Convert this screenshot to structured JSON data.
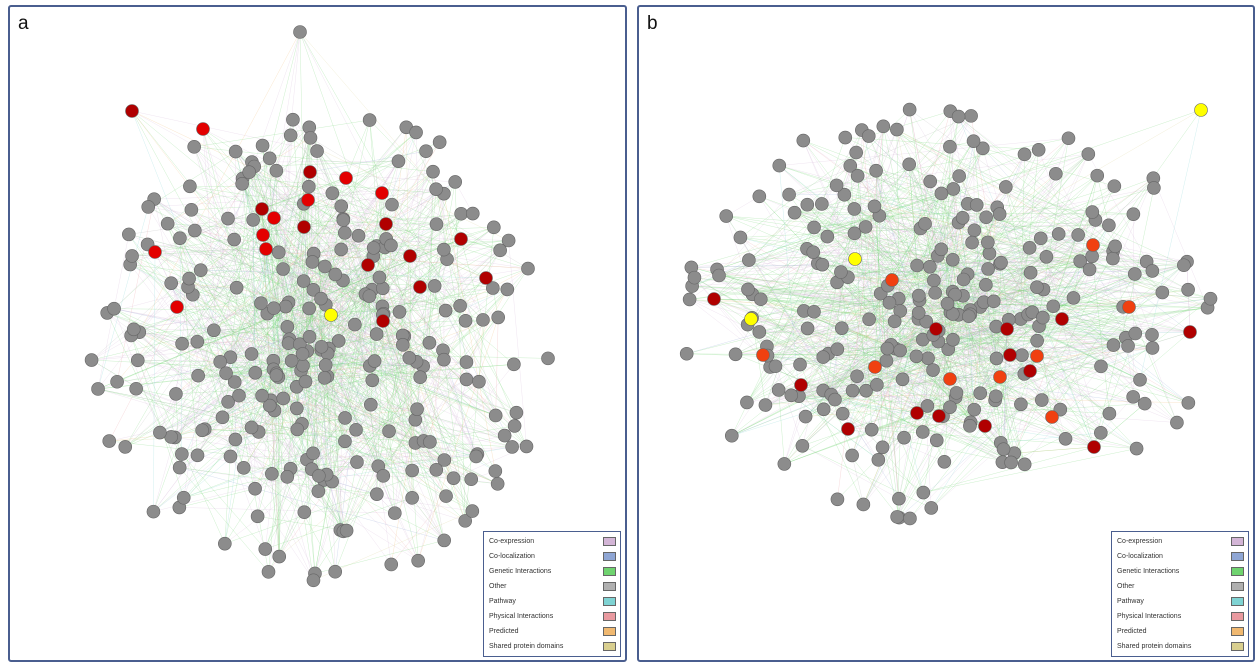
{
  "panels": [
    {
      "label": "a"
    },
    {
      "label": "b"
    }
  ],
  "legend": [
    {
      "label": "Co-expression",
      "color": "#d3b5d6"
    },
    {
      "label": "Co-localization",
      "color": "#8fa6d4"
    },
    {
      "label": "Genetic Interactions",
      "color": "#6fd36f"
    },
    {
      "label": "Other",
      "color": "#b0b0b0"
    },
    {
      "label": "Pathway",
      "color": "#7fd3d3"
    },
    {
      "label": "Physical Interactions",
      "color": "#e99aa0"
    },
    {
      "label": "Predicted",
      "color": "#f0b870"
    },
    {
      "label": "Shared protein domains",
      "color": "#d9cf8f"
    }
  ],
  "node_colors": {
    "default": "#8c8c8c",
    "query_dark": "#b00000",
    "query_red": "#e30000",
    "query_orange": "#f04010",
    "highlight": "#ffff00"
  }
}
